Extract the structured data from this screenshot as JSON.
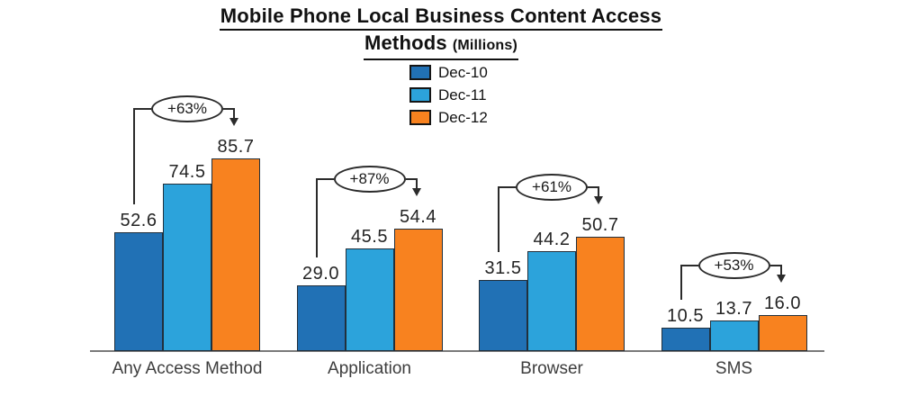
{
  "title": {
    "line1": "Mobile Phone Local Business Content Access",
    "line2_main": "Methods",
    "line2_sub": "(Millions)"
  },
  "chart_data": {
    "type": "bar",
    "title": "Mobile Phone Local Business Content Access Methods (Millions)",
    "unit": "Millions",
    "categories": [
      "Any Access Method",
      "Application",
      "Browser",
      "SMS"
    ],
    "series": [
      {
        "name": "Dec-10",
        "color": "#2171B5",
        "values": [
          52.6,
          29.0,
          31.5,
          10.5
        ]
      },
      {
        "name": "Dec-11",
        "color": "#2CA3DB",
        "values": [
          74.5,
          45.5,
          44.2,
          13.7
        ]
      },
      {
        "name": "Dec-12",
        "color": "#F8821F",
        "values": [
          85.7,
          54.4,
          50.7,
          16.0
        ]
      }
    ],
    "annotations": [
      {
        "category": "Any Access Method",
        "label": "+63%",
        "from_series": "Dec-10",
        "to_series": "Dec-12"
      },
      {
        "category": "Application",
        "label": "+87%",
        "from_series": "Dec-10",
        "to_series": "Dec-12"
      },
      {
        "category": "Browser",
        "label": "+61%",
        "from_series": "Dec-10",
        "to_series": "Dec-12"
      },
      {
        "category": "SMS",
        "label": "+53%",
        "from_series": "Dec-10",
        "to_series": "Dec-12"
      }
    ],
    "value_labels": "one-decimal",
    "legend_position": "top-center",
    "grid": false,
    "y_axis_visible": false,
    "ylim": [
      0,
      100
    ],
    "axis_color": "#7a7a7a",
    "bar_border_color": "#22303c"
  }
}
